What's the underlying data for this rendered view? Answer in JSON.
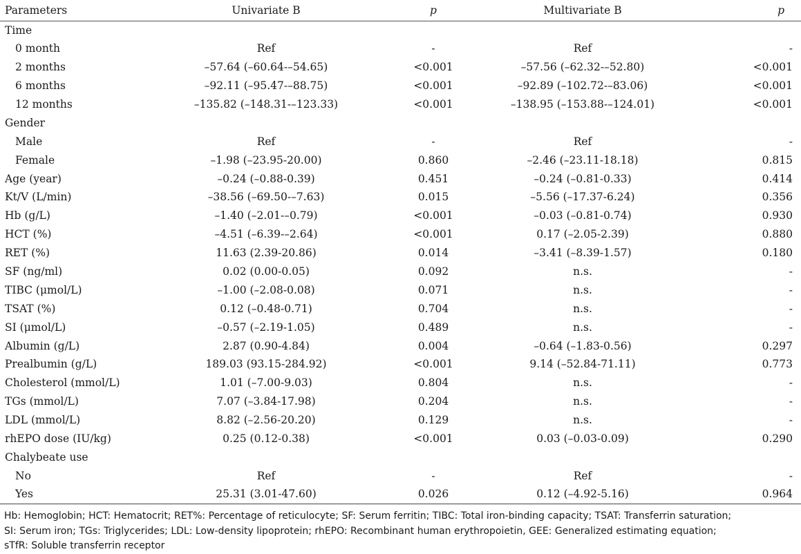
{
  "table": {
    "headers": [
      "Parameters",
      "Univariate B",
      "p",
      "Multivariate B",
      "p"
    ],
    "rows": [
      {
        "label": "Time",
        "indent": false,
        "uni": "",
        "p1": "",
        "multi": "",
        "p2": ""
      },
      {
        "label": "0 month",
        "indent": true,
        "uni": "Ref",
        "p1": "-",
        "multi": "Ref",
        "p2": "-"
      },
      {
        "label": "2 months",
        "indent": true,
        "uni": "–57.64 (–60.64-–54.65)",
        "p1": "<0.001",
        "multi": "–57.56 (–62.32-–52.80)",
        "p2": "<0.001"
      },
      {
        "label": "6 months",
        "indent": true,
        "uni": "–92.11 (–95.47-–88.75)",
        "p1": "<0.001",
        "multi": "–92.89 (–102.72-–83.06)",
        "p2": "<0.001"
      },
      {
        "label": "12 months",
        "indent": true,
        "uni": "–135.82 (–148.31-–123.33)",
        "p1": "<0.001",
        "multi": "–138.95 (–153.88-–124.01)",
        "p2": "<0.001"
      },
      {
        "label": "Gender",
        "indent": false,
        "uni": "",
        "p1": "",
        "multi": "",
        "p2": ""
      },
      {
        "label": "Male",
        "indent": true,
        "uni": "Ref",
        "p1": "-",
        "multi": "Ref",
        "p2": "-"
      },
      {
        "label": "Female",
        "indent": true,
        "uni": "–1.98 (–23.95-20.00)",
        "p1": "0.860",
        "multi": "–2.46 (–23.11-18.18)",
        "p2": "0.815"
      },
      {
        "label": "Age (year)",
        "indent": false,
        "uni": "–0.24 (–0.88-0.39)",
        "p1": "0.451",
        "multi": "–0.24 (–0.81-0.33)",
        "p2": "0.414"
      },
      {
        "label": "Kt/V (L/min)",
        "indent": false,
        "uni": "–38.56 (–69.50-–7.63)",
        "p1": "0.015",
        "multi": "–5.56 (–17.37-6.24)",
        "p2": "0.356"
      },
      {
        "label": "Hb (g/L)",
        "indent": false,
        "uni": "–1.40 (–2.01-–0.79)",
        "p1": "<0.001",
        "multi": "–0.03 (–0.81-0.74)",
        "p2": "0.930"
      },
      {
        "label": "HCT (%)",
        "indent": false,
        "uni": "–4.51 (–6.39-–2.64)",
        "p1": "<0.001",
        "multi": "0.17 (–2.05-2.39)",
        "p2": "0.880"
      },
      {
        "label": "RET (%)",
        "indent": false,
        "uni": "11.63 (2.39-20.86)",
        "p1": "0.014",
        "multi": "–3.41 (–8.39-1.57)",
        "p2": "0.180"
      },
      {
        "label": "SF (ng/ml)",
        "indent": false,
        "uni": "0.02 (0.00-0.05)",
        "p1": "0.092",
        "multi": "n.s.",
        "p2": "-"
      },
      {
        "label": "TIBC (μmol/L)",
        "indent": false,
        "uni": "–1.00 (–2.08-0.08)",
        "p1": "0.071",
        "multi": "n.s.",
        "p2": "-"
      },
      {
        "label": "TSAT (%)",
        "indent": false,
        "uni": "0.12 (–0.48-0.71)",
        "p1": "0.704",
        "multi": "n.s.",
        "p2": "-"
      },
      {
        "label": "SI (μmol/L)",
        "indent": false,
        "uni": "–0.57 (–2.19-1.05)",
        "p1": "0.489",
        "multi": "n.s.",
        "p2": "-"
      },
      {
        "label": "Albumin (g/L)",
        "indent": false,
        "uni": "2.87 (0.90-4.84)",
        "p1": "0.004",
        "multi": "–0.64 (–1.83-0.56)",
        "p2": "0.297"
      },
      {
        "label": "Prealbumin (g/L)",
        "indent": false,
        "uni": "189.03 (93.15-284.92)",
        "p1": "<0.001",
        "multi": "9.14 (–52.84-71.11)",
        "p2": "0.773"
      },
      {
        "label": "Cholesterol (mmol/L)",
        "indent": false,
        "uni": "1.01 (–7.00-9.03)",
        "p1": "0.804",
        "multi": "n.s.",
        "p2": "-"
      },
      {
        "label": "TGs (mmol/L)",
        "indent": false,
        "uni": "7.07 (–3.84-17.98)",
        "p1": "0.204",
        "multi": "n.s.",
        "p2": "-"
      },
      {
        "label": "LDL (mmol/L)",
        "indent": false,
        "uni": "8.82 (–2.56-20.20)",
        "p1": "0.129",
        "multi": "n.s.",
        "p2": "-"
      },
      {
        "label": "rhEPO dose (IU/kg)",
        "indent": false,
        "uni": "0.25 (0.12-0.38)",
        "p1": "<0.001",
        "multi": "0.03 (–0.03-0.09)",
        "p2": "0.290"
      },
      {
        "label": "Chalybeate use",
        "indent": false,
        "uni": "",
        "p1": "",
        "multi": "",
        "p2": ""
      },
      {
        "label": "No",
        "indent": true,
        "uni": "Ref",
        "p1": "-",
        "multi": "Ref",
        "p2": "-"
      },
      {
        "label": "Yes",
        "indent": true,
        "uni": "25.31 (3.01-47.60)",
        "p1": "0.026",
        "multi": "0.12 (–4.92-5.16)",
        "p2": "0.964"
      }
    ]
  },
  "footnote": {
    "lines": [
      "Hb: Hemoglobin; HCT: Hematocrit; RET%: Percentage of reticulocyte; SF: Serum ferritin; TIBC: Total iron-binding capacity; TSAT: Transferrin saturation;",
      "SI: Serum iron; TGs: Triglycerides; LDL: Low-density lipoprotein; rhEPO: Recombinant human erythropoietin, GEE: Generalized estimating equation;",
      "sTfR: Soluble transferrin receptor"
    ]
  }
}
